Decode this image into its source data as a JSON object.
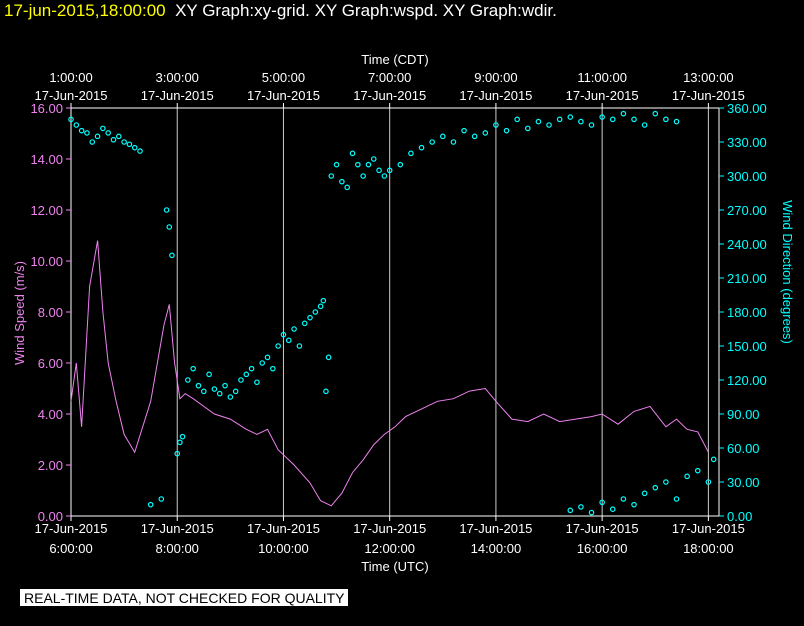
{
  "header": {
    "timestamp": "17-jun-2015,18:00:00",
    "graphs": "XY Graph:xy-grid.  XY Graph:wspd.  XY Graph:wdir."
  },
  "footer": {
    "notice": "REAL-TIME DATA, NOT CHECKED FOR QUALITY"
  },
  "colors": {
    "speed": "#ee82ee",
    "direction": "#00ffff",
    "axis": "#ffffff",
    "background": "#000000",
    "header_ts": "#ffff00"
  },
  "chart_data": {
    "type": "line",
    "x_top_label": "Time (CDT)",
    "x_bottom_label": "Time (UTC)",
    "xlim_utc_hours": [
      6.0,
      18.2
    ],
    "top_ticks": [
      {
        "time": "1:00:00",
        "date": "17-Jun-2015"
      },
      {
        "time": "3:00:00",
        "date": "17-Jun-2015"
      },
      {
        "time": "5:00:00",
        "date": "17-Jun-2015"
      },
      {
        "time": "7:00:00",
        "date": "17-Jun-2015"
      },
      {
        "time": "9:00:00",
        "date": "17-Jun-2015"
      },
      {
        "time": "11:00:00",
        "date": "17-Jun-2015"
      },
      {
        "time": "13:00:00",
        "date": "17-Jun-2015"
      }
    ],
    "bottom_ticks": [
      {
        "time": "6:00:00",
        "date": "17-Jun-2015"
      },
      {
        "time": "8:00:00",
        "date": "17-Jun-2015"
      },
      {
        "time": "10:00:00",
        "date": "17-Jun-2015"
      },
      {
        "time": "12:00:00",
        "date": "17-Jun-2015"
      },
      {
        "time": "14:00:00",
        "date": "17-Jun-2015"
      },
      {
        "time": "16:00:00",
        "date": "17-Jun-2015"
      },
      {
        "time": "18:00:00",
        "date": "17-Jun-2015"
      }
    ],
    "y_left": {
      "label": "Wind Speed (m/s)",
      "ylim": [
        0,
        16
      ],
      "ticks": [
        "0.00",
        "2.00",
        "4.00",
        "6.00",
        "8.00",
        "10.00",
        "12.00",
        "14.00",
        "16.00"
      ]
    },
    "y_right": {
      "label": "Wind Direction (degrees)",
      "ylim": [
        0,
        360
      ],
      "ticks": [
        "0.00",
        "30.00",
        "60.00",
        "90.00",
        "120.00",
        "150.00",
        "180.00",
        "210.00",
        "240.00",
        "270.00",
        "300.00",
        "330.00",
        "360.00"
      ]
    },
    "series": [
      {
        "name": "wspd",
        "axis": "left",
        "style": "line",
        "x": [
          6.0,
          6.1,
          6.2,
          6.35,
          6.5,
          6.6,
          6.7,
          6.85,
          7.0,
          7.2,
          7.5,
          7.75,
          7.85,
          7.95,
          8.05,
          8.15,
          8.3,
          8.5,
          8.7,
          9.0,
          9.3,
          9.5,
          9.7,
          9.9,
          10.2,
          10.5,
          10.7,
          10.9,
          11.1,
          11.3,
          11.5,
          11.7,
          11.9,
          12.1,
          12.3,
          12.6,
          12.9,
          13.2,
          13.5,
          13.8,
          14.0,
          14.3,
          14.6,
          14.9,
          15.2,
          15.5,
          15.8,
          16.0,
          16.3,
          16.6,
          16.9,
          17.2,
          17.4,
          17.6,
          17.8,
          18.0
        ],
        "values": [
          4.5,
          6.0,
          3.5,
          9.0,
          10.8,
          8.0,
          6.0,
          4.5,
          3.2,
          2.5,
          4.5,
          7.5,
          8.3,
          6.0,
          4.6,
          4.8,
          4.6,
          4.3,
          4.0,
          3.8,
          3.4,
          3.2,
          3.4,
          2.6,
          2.0,
          1.3,
          0.6,
          0.4,
          0.9,
          1.7,
          2.2,
          2.8,
          3.2,
          3.5,
          3.9,
          4.2,
          4.5,
          4.6,
          4.9,
          5.0,
          4.5,
          3.8,
          3.7,
          4.0,
          3.7,
          3.8,
          3.9,
          4.0,
          3.6,
          4.1,
          4.3,
          3.5,
          3.8,
          3.4,
          3.3,
          2.5
        ]
      },
      {
        "name": "wdir",
        "axis": "right",
        "style": "scatter",
        "x": [
          6.0,
          6.1,
          6.2,
          6.3,
          6.4,
          6.5,
          6.6,
          6.7,
          6.8,
          6.9,
          7.0,
          7.1,
          7.2,
          7.3,
          7.5,
          7.7,
          7.8,
          7.85,
          7.9,
          8.0,
          8.05,
          8.1,
          8.2,
          8.3,
          8.4,
          8.5,
          8.6,
          8.7,
          8.8,
          8.9,
          9.0,
          9.1,
          9.2,
          9.3,
          9.4,
          9.5,
          9.6,
          9.7,
          9.8,
          9.9,
          10.0,
          10.1,
          10.2,
          10.3,
          10.4,
          10.5,
          10.6,
          10.7,
          10.75,
          10.8,
          10.85,
          10.9,
          11.0,
          11.1,
          11.2,
          11.3,
          11.4,
          11.5,
          11.6,
          11.7,
          11.8,
          11.9,
          12.0,
          12.2,
          12.4,
          12.6,
          12.8,
          13.0,
          13.2,
          13.4,
          13.6,
          13.8,
          14.0,
          14.2,
          14.4,
          14.6,
          14.8,
          15.0,
          15.2,
          15.4,
          15.6,
          15.8,
          16.0,
          16.2,
          16.4,
          16.6,
          16.8,
          17.0,
          17.2,
          17.4,
          15.4,
          15.6,
          15.8,
          16.0,
          16.2,
          16.4,
          16.6,
          16.8,
          17.0,
          17.2,
          17.4,
          17.6,
          17.8,
          18.0,
          18.1
        ],
        "values": [
          350,
          345,
          340,
          338,
          330,
          335,
          342,
          338,
          332,
          335,
          330,
          328,
          325,
          322,
          10,
          15,
          270,
          255,
          230,
          55,
          65,
          70,
          120,
          130,
          115,
          110,
          125,
          112,
          108,
          115,
          105,
          110,
          120,
          125,
          130,
          118,
          135,
          140,
          130,
          150,
          160,
          155,
          165,
          150,
          170,
          175,
          180,
          185,
          190,
          110,
          140,
          300,
          310,
          295,
          290,
          320,
          310,
          300,
          310,
          315,
          305,
          300,
          305,
          310,
          320,
          325,
          330,
          335,
          330,
          340,
          335,
          338,
          345,
          340,
          350,
          342,
          348,
          345,
          350,
          352,
          348,
          345,
          352,
          350,
          355,
          350,
          345,
          355,
          350,
          348,
          5,
          8,
          3,
          12,
          6,
          15,
          10,
          20,
          25,
          30,
          15,
          35,
          40,
          30,
          50
        ]
      }
    ],
    "grid": "vertical lines at each bottom tick",
    "legend": "none"
  }
}
